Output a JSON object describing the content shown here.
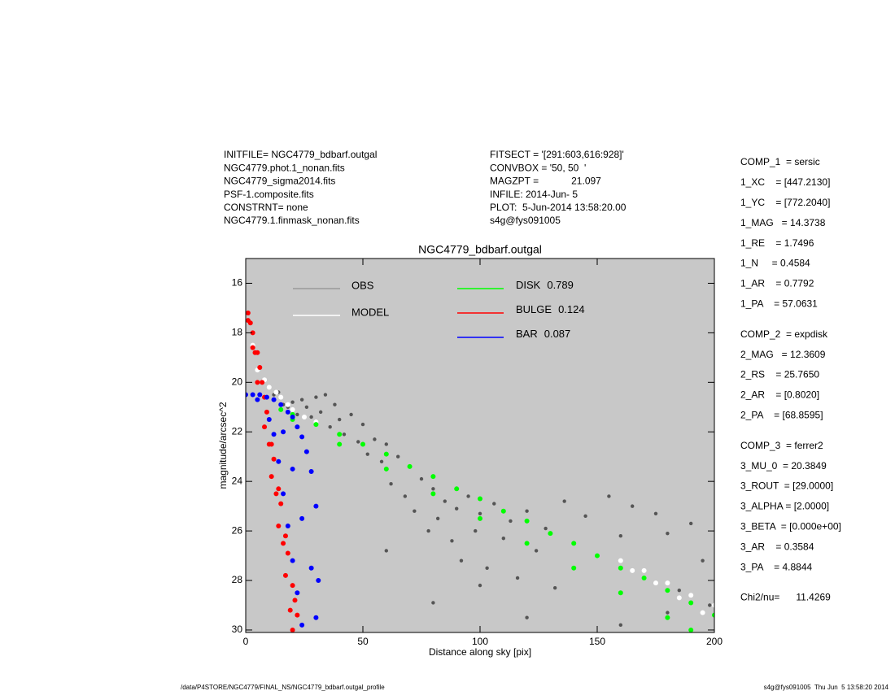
{
  "header_left": [
    "INITFILE= NGC4779_bdbarf.outgal",
    "NGC4779.phot.1_nonan.fits",
    "NGC4779_sigma2014.fits",
    "PSF-1.composite.fits",
    "CONSTRNT= none",
    "NGC4779.1.finmask_nonan.fits"
  ],
  "header_middle": [
    "FITSECT = '[291:603,616:928]'",
    "CONVBOX = '50, 50  '",
    "MAGZPT =            21.097",
    "INFILE: 2014-Jun- 5",
    "PLOT:  5-Jun-2014 13:58:20.00",
    "s4g@fys091005"
  ],
  "parameters": [
    [
      "COMP_1  = sersic",
      "1_XC    = [447.2130]",
      "1_YC    = [772.2040]",
      "1_MAG   = 14.3738",
      "1_RE    = 1.7496",
      "1_N     = 0.4584",
      "1_AR    = 0.7792",
      "1_PA    = 57.0631"
    ],
    [
      "COMP_2  = expdisk",
      "2_MAG   = 12.3609",
      "2_RS    = 25.7650",
      "2_AR    = [0.8020]",
      "2_PA    = [68.8595]"
    ],
    [
      "COMP_3  = ferrer2",
      "3_MU_0  = 20.3849",
      "3_ROUT  = [29.0000]",
      "3_ALPHA = [2.0000]",
      "3_BETA  = [0.000e+00]",
      "3_AR    = 0.3584",
      "3_PA    = 4.8844"
    ],
    [
      "Chi2/nu=      11.4269"
    ]
  ],
  "footer_left": "/data/P4STORE/NGC4779/FINAL_NS/NGC4779_bdbarf.outgal_profile",
  "footer_right": "s4g@fys091005  Thu Jun  5 13:58:20 2014",
  "chart_data": {
    "type": "scatter",
    "title": "NGC4779_bdbarf.outgal",
    "x_label": "Distance along sky [pix]",
    "y_label": "magnitude/arcsec^2",
    "xlim": [
      0,
      200
    ],
    "xticks": [
      0,
      50,
      100,
      150,
      200
    ],
    "ylim": [
      30.1,
      15
    ],
    "yticks": [
      16,
      18,
      20,
      22,
      24,
      26,
      28,
      30
    ],
    "background": "#c8c8c8",
    "series": [
      {
        "name": "OBS",
        "color": "#555555",
        "legend_color": "#999999",
        "x": [
          10,
          12,
          14,
          16,
          18,
          20,
          22,
          24,
          26,
          28,
          30,
          32,
          34,
          36,
          38,
          40,
          42,
          45,
          48,
          50,
          52,
          55,
          58,
          60,
          62,
          65,
          68,
          70,
          72,
          75,
          78,
          80,
          82,
          85,
          88,
          90,
          92,
          95,
          98,
          100,
          103,
          106,
          110,
          113,
          116,
          120,
          124,
          128,
          132,
          136,
          140,
          145,
          150,
          155,
          160,
          165,
          170,
          175,
          180,
          185,
          190,
          195,
          198,
          60,
          80,
          100,
          120,
          140,
          160,
          180
        ],
        "values": [
          20.2,
          20.5,
          20.4,
          20.9,
          21.0,
          20.8,
          21.3,
          20.7,
          21.0,
          21.4,
          20.6,
          21.2,
          20.5,
          21.8,
          20.9,
          21.5,
          22.1,
          21.3,
          22.4,
          21.7,
          22.9,
          22.3,
          23.2,
          22.5,
          24.1,
          23.0,
          24.6,
          23.4,
          25.2,
          23.9,
          26.0,
          24.3,
          25.5,
          24.8,
          26.4,
          25.1,
          27.2,
          24.6,
          26.0,
          25.3,
          27.5,
          24.9,
          26.3,
          25.6,
          27.9,
          25.2,
          26.8,
          25.9,
          28.3,
          24.8,
          26.5,
          25.4,
          27.0,
          24.6,
          26.2,
          25.0,
          27.6,
          25.3,
          26.1,
          28.4,
          25.7,
          27.2,
          29.0,
          26.8,
          28.9,
          28.2,
          29.5,
          27.5,
          29.8,
          29.3
        ]
      },
      {
        "name": "MODEL",
        "color": "#ffffff",
        "legend_color": "#ffffff",
        "x": [
          3,
          5,
          8,
          10,
          13,
          15,
          18,
          20,
          25,
          30,
          160,
          170,
          180,
          190,
          200,
          165,
          175,
          185,
          195
        ],
        "values": [
          18.5,
          19.5,
          19.9,
          20.2,
          20.4,
          20.6,
          20.9,
          21.1,
          21.4,
          21.6,
          27.2,
          27.6,
          28.1,
          28.6,
          29.0,
          27.6,
          28.1,
          28.7,
          29.3
        ]
      },
      {
        "name": "DISK",
        "fraction": 0.789,
        "color": "#00ff00",
        "legend_color": "#00ff00",
        "x": [
          15,
          20,
          30,
          40,
          50,
          60,
          70,
          80,
          90,
          100,
          110,
          120,
          130,
          140,
          150,
          160,
          170,
          180,
          190,
          200,
          20,
          40,
          60,
          80,
          100,
          120,
          140,
          160,
          180,
          190
        ],
        "values": [
          21.1,
          21.3,
          21.7,
          22.1,
          22.5,
          22.9,
          23.4,
          23.8,
          24.3,
          24.7,
          25.2,
          25.6,
          26.1,
          26.5,
          27.0,
          27.5,
          27.9,
          28.4,
          28.9,
          29.4,
          21.5,
          22.5,
          23.5,
          24.5,
          25.5,
          26.5,
          27.5,
          28.5,
          29.5,
          30.0
        ]
      },
      {
        "name": "BULGE",
        "fraction": 0.124,
        "color": "#ff0000",
        "legend_color": "#ff0000",
        "x": [
          1,
          1,
          2,
          3,
          3,
          4,
          5,
          5,
          6,
          7,
          8,
          8,
          9,
          10,
          11,
          11,
          12,
          13,
          14,
          14,
          15,
          16,
          17,
          17,
          18,
          19,
          20,
          20,
          21,
          22
        ],
        "values": [
          17.2,
          17.5,
          17.6,
          18.0,
          18.6,
          18.8,
          18.8,
          20.0,
          19.4,
          20.0,
          20.6,
          21.8,
          21.2,
          22.5,
          22.5,
          23.8,
          23.1,
          24.5,
          24.3,
          25.8,
          24.9,
          26.5,
          26.2,
          27.8,
          26.9,
          29.2,
          28.2,
          30.0,
          28.8,
          29.4
        ]
      },
      {
        "name": "BAR",
        "fraction": 0.087,
        "color": "#0000ff",
        "legend_color": "#0000ff",
        "x": [
          0,
          3,
          6,
          9,
          12,
          15,
          18,
          20,
          22,
          24,
          26,
          28,
          30,
          31,
          5,
          10,
          12,
          14,
          16,
          18,
          20,
          22,
          24,
          16,
          20,
          24,
          28,
          30
        ],
        "values": [
          20.5,
          20.5,
          20.5,
          20.6,
          20.7,
          20.9,
          21.2,
          21.4,
          21.8,
          22.2,
          22.8,
          23.6,
          25.0,
          28.0,
          20.7,
          21.5,
          22.1,
          23.2,
          24.5,
          25.8,
          27.2,
          28.5,
          29.8,
          22.0,
          23.5,
          25.5,
          27.5,
          29.5
        ]
      }
    ]
  }
}
